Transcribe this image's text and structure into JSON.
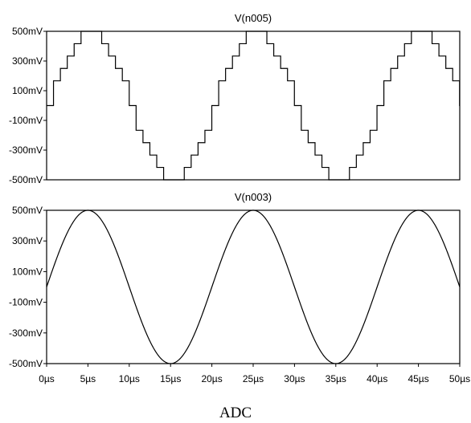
{
  "caption": "ADC",
  "colors": {
    "background": "#ffffff",
    "trace": "#000000",
    "axis": "#000000"
  },
  "chart_data": [
    {
      "type": "line",
      "title": "V(n005)",
      "xlabel": "",
      "ylabel": "",
      "x_unit": "µs",
      "y_unit": "mV",
      "xlim": [
        0,
        50
      ],
      "ylim": [
        -500,
        500
      ],
      "yticks": [
        500,
        300,
        100,
        -100,
        -300,
        -500
      ],
      "ytick_labels": [
        "500mV",
        "300mV",
        "100mV",
        "-100mV",
        "-300mV",
        "-500mV"
      ],
      "waveform": "sine",
      "amplitude_mV": 500,
      "period_us": 20,
      "phase_start_mV": 0,
      "quantized": true,
      "step_us": 0.833,
      "x": [
        0,
        5,
        10,
        15,
        20,
        25,
        30,
        35,
        40,
        45,
        50
      ],
      "values": [
        0,
        500,
        0,
        -500,
        0,
        500,
        0,
        -500,
        0,
        500,
        150
      ],
      "grid": false
    },
    {
      "type": "line",
      "title": "V(n003)",
      "xlabel": "",
      "ylabel": "",
      "x_unit": "µs",
      "y_unit": "mV",
      "xlim": [
        0,
        50
      ],
      "ylim": [
        -500,
        500
      ],
      "yticks": [
        500,
        300,
        100,
        -100,
        -300,
        -500
      ],
      "ytick_labels": [
        "500mV",
        "300mV",
        "100mV",
        "-100mV",
        "-300mV",
        "-500mV"
      ],
      "xticks": [
        0,
        5,
        10,
        15,
        20,
        25,
        30,
        35,
        40,
        45,
        50
      ],
      "xtick_labels": [
        "0µs",
        "5µs",
        "10µs",
        "15µs",
        "20µs",
        "25µs",
        "30µs",
        "35µs",
        "40µs",
        "45µs",
        "50µs"
      ],
      "waveform": "sine",
      "amplitude_mV": 500,
      "period_us": 20,
      "phase_start_mV": 0,
      "quantized": false,
      "x": [
        0,
        5,
        10,
        15,
        20,
        25,
        30,
        35,
        40,
        45,
        50
      ],
      "values": [
        0,
        500,
        0,
        -500,
        0,
        500,
        0,
        -500,
        0,
        500,
        0
      ],
      "grid": false
    }
  ]
}
